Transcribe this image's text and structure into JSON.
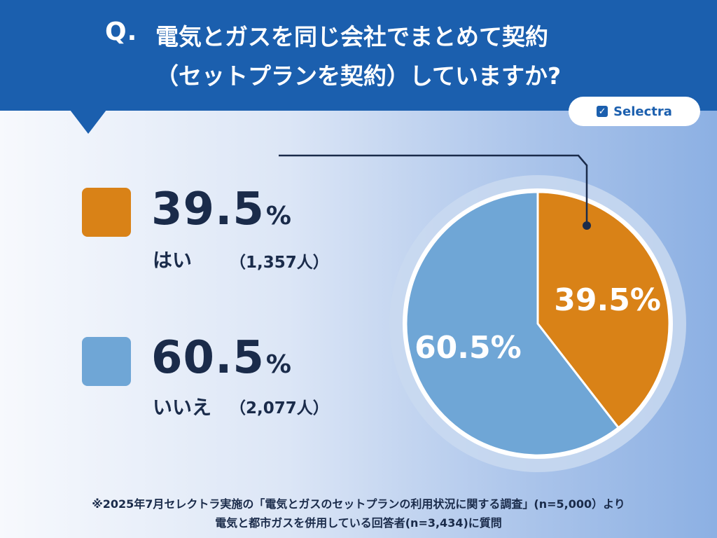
{
  "header": {
    "q_mark": "Q.",
    "line1": "電気とガスを同じ会社でまとめて契約",
    "line2": "（セットプランを契約）していますか?"
  },
  "brand": {
    "name": "Selectra",
    "icon": "check-square-icon",
    "icon_glyph": "✓"
  },
  "legend": [
    {
      "value": "39.5",
      "unit": "%",
      "label": "はい",
      "count": "（1,357人）",
      "color": "#d98217"
    },
    {
      "value": "60.5",
      "unit": "%",
      "label": "いいえ",
      "count": "（2,077人）",
      "color": "#6fa6d6"
    }
  ],
  "chart_data": {
    "type": "pie",
    "title": "電気とガスを同じ会社でまとめて契約（セットプランを契約）していますか?",
    "categories": [
      "はい",
      "いいえ"
    ],
    "values": [
      39.5,
      60.5
    ],
    "counts": [
      1357,
      2077
    ],
    "unit": "%",
    "data_labels": [
      "39.5%",
      "60.5%"
    ],
    "colors": [
      "#d98217",
      "#6fa6d6"
    ],
    "start": "12 o'clock, clockwise"
  },
  "footnote": {
    "line1": "※2025年7月セレクトラ実施の「電気とガスのセットプランの利用状況に関する調査」(n=5,000）より",
    "line2": "電気と都市ガスを併用している回答者(n=3,434)に質問"
  }
}
